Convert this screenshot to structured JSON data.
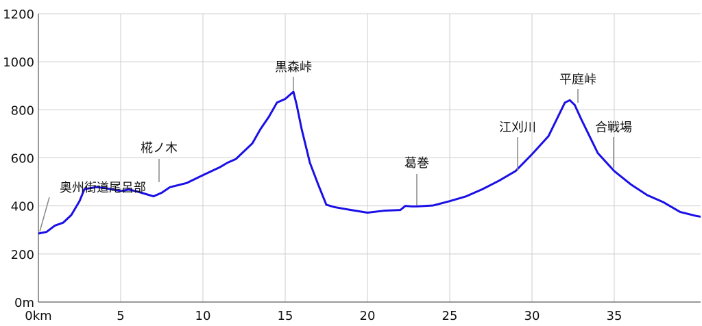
{
  "chart_data": {
    "type": "line",
    "x": [
      0,
      0.5,
      1,
      1.5,
      2,
      2.5,
      2.8,
      3.5,
      4,
      5,
      5.5,
      6,
      6.5,
      7,
      7.5,
      8,
      9,
      10,
      11,
      11.5,
      12,
      13,
      13.5,
      14,
      14.5,
      15,
      15.5,
      15.7,
      16,
      16.5,
      17,
      17.5,
      18,
      19,
      20,
      21,
      22,
      22.3,
      22.7,
      23,
      24,
      25,
      26,
      27,
      28,
      29,
      30,
      31,
      31.5,
      32,
      32.3,
      32.6,
      33,
      33.5,
      34,
      35,
      36,
      37,
      38,
      39,
      40,
      40.25
    ],
    "series": [
      {
        "color": "#1a10e6",
        "values": [
          285,
          292,
          318,
          330,
          362,
          420,
          470,
          478,
          475,
          462,
          468,
          460,
          450,
          440,
          455,
          478,
          495,
          528,
          560,
          580,
          595,
          660,
          720,
          770,
          830,
          845,
          875,
          820,
          720,
          580,
          490,
          405,
          395,
          383,
          372,
          380,
          383,
          400,
          398,
          398,
          402,
          420,
          440,
          470,
          505,
          545,
          615,
          690,
          760,
          830,
          840,
          820,
          760,
          690,
          620,
          545,
          490,
          445,
          415,
          375,
          358,
          355
        ]
      }
    ],
    "xlim": [
      0,
      40.25
    ],
    "ylim": [
      0,
      1200
    ],
    "xticks": [
      {
        "value": 0,
        "label": "0km"
      },
      5,
      10,
      15,
      20,
      25,
      30,
      35
    ],
    "yticks": [
      {
        "value": 0,
        "label": "0m"
      },
      200,
      400,
      600,
      800,
      1000,
      1200
    ],
    "grid": true,
    "annotations": [
      {
        "x": 0,
        "text": "奥州街道尾呂部"
      },
      {
        "x": 7.3,
        "text": "椛ノ木"
      },
      {
        "x": 15.5,
        "text": "黒森峠"
      },
      {
        "x": 22.9,
        "text": "葛巻"
      },
      {
        "x": 29,
        "text": "江刈川"
      },
      {
        "x": 32.5,
        "text": "平庭峠"
      },
      {
        "x": 34.8,
        "text": "合戦場"
      }
    ]
  }
}
